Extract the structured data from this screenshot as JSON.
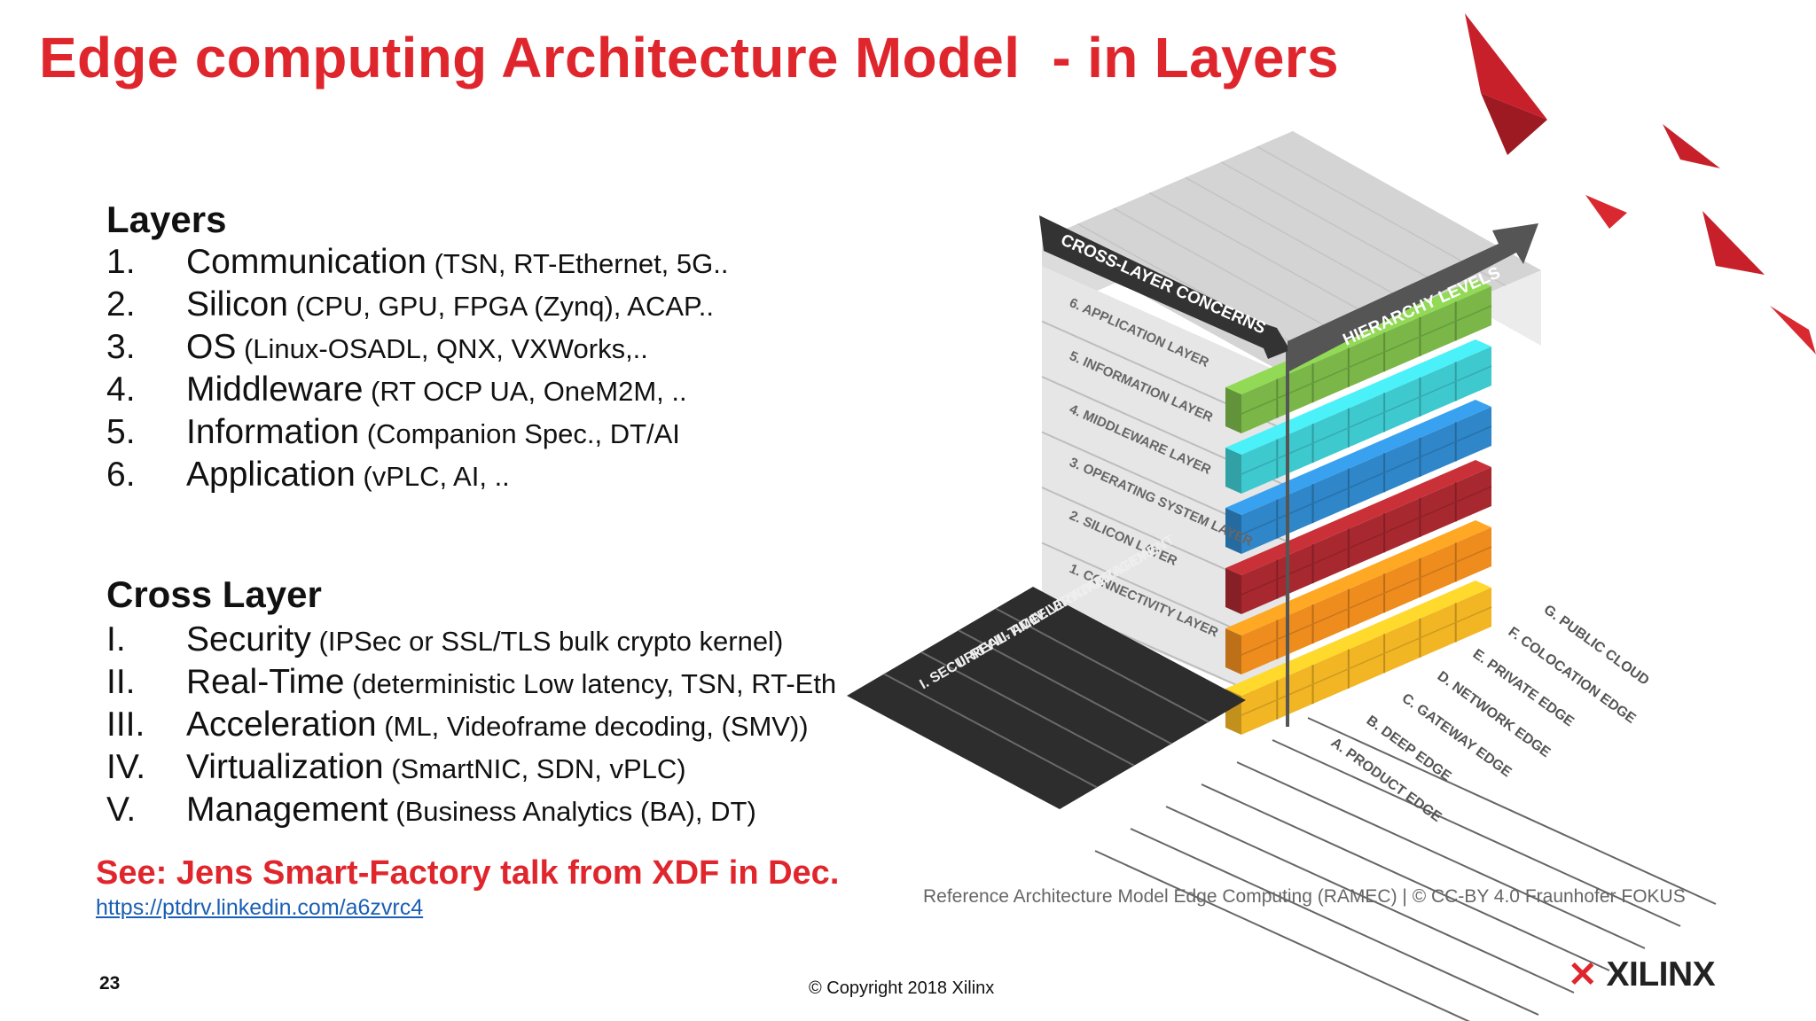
{
  "title": "Edge computing Architecture Model  - in Layers",
  "layers": {
    "heading": "Layers",
    "items": [
      {
        "num": "1.",
        "name": "Communication",
        "detail": " (TSN, RT-Ethernet, 5G.."
      },
      {
        "num": "2.",
        "name": "Silicon",
        "detail": " (CPU, GPU, FPGA (Zynq), ACAP.."
      },
      {
        "num": "3.",
        "name": "OS",
        "detail": " (Linux-OSADL, QNX, VXWorks,.."
      },
      {
        "num": "4.",
        "name": "Middleware",
        "detail": " (RT OCP UA, OneM2M, .."
      },
      {
        "num": "5.",
        "name": "Information",
        "detail": " (Companion Spec., DT/AI"
      },
      {
        "num": "6.",
        "name": "Application",
        "detail": " (vPLC, AI, .."
      }
    ]
  },
  "cross_layer": {
    "heading": "Cross Layer",
    "items": [
      {
        "num": "I.",
        "name": "Security",
        "detail": " (IPSec or SSL/TLS bulk crypto kernel)"
      },
      {
        "num": "II.",
        "name": "Real-Time",
        "detail": " (deterministic Low latency, TSN, RT-Eth"
      },
      {
        "num": "III.",
        "name": "Acceleration",
        "detail": " (ML, Videoframe decoding, (SMV))"
      },
      {
        "num": "IV.",
        "name": "Virtualization",
        "detail": " (SmartNIC, SDN, vPLC)"
      },
      {
        "num": "V.",
        "name": "Management",
        "detail": " (Business Analytics (BA), DT)"
      }
    ]
  },
  "see_note": "See: Jens Smart-Factory talk from XDF in Dec.",
  "link": "https://ptdrv.linkedin.com/a6zvrc4",
  "page_number": "23",
  "copyright": "© Copyright 2018 Xilinx",
  "diagram": {
    "caption": "Reference Architecture Model Edge Computing (RAMEC) | © CC-BY 4.0 Fraunhofer FOKUS",
    "cross_layer_arrow": "CROSS-LAYER CONCERNS",
    "hierarchy_arrow": "HIERARCHY LEVELS",
    "layer_labels": [
      "6. APPLICATION LAYER",
      "5. INFORMATION LAYER",
      "4. MIDDLEWARE LAYER",
      "3. OPERATING SYSTEM LAYER",
      "2. SILICON LAYER",
      "1. CONNECTIVITY LAYER"
    ],
    "layer_colors": [
      "#7ab648",
      "#3ec9cf",
      "#2f86c8",
      "#a8282f",
      "#ee8c1e",
      "#f2b524"
    ],
    "concerns": [
      "I. SECURITY",
      "II. REAL-TIME",
      "III. ACCELERATION",
      "IV. VIRTUALIZATION",
      "V. MANAGEMENT"
    ],
    "hierarchy": [
      "G. PUBLIC CLOUD",
      "F. COLOCATION EDGE",
      "E. PRIVATE EDGE",
      "D. NETWORK EDGE",
      "C. GATEWAY EDGE",
      "B. DEEP EDGE",
      "A. PRODUCT EDGE"
    ]
  },
  "logo": {
    "text": "XILINX",
    "mark": "✕",
    "accent": "#e0262d"
  }
}
